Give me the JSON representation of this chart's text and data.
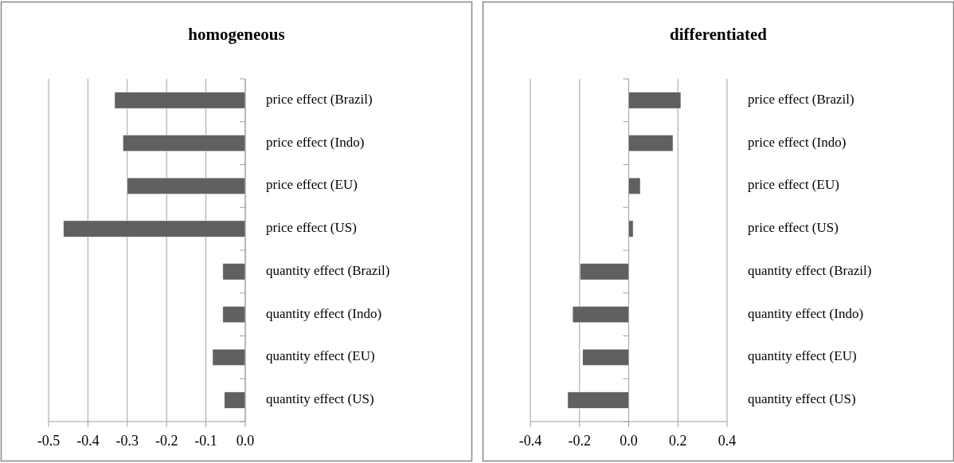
{
  "chart_data": [
    {
      "type": "bar",
      "orientation": "horizontal",
      "title": "homogeneous",
      "categories": [
        "price effect (Brazil)",
        "price effect (Indo)",
        "price effect (EU)",
        "price effect (US)",
        "quantity effect (Brazil)",
        "quantity effect (Indo)",
        "quantity effect (EU)",
        "quantity effect (US)"
      ],
      "values": [
        -0.332,
        -0.311,
        -0.3,
        -0.462,
        -0.057,
        -0.057,
        -0.083,
        -0.053
      ],
      "color": "#606060",
      "xlim": [
        -0.5,
        0
      ],
      "xticks": [
        {
          "value": -0.5,
          "label": "-0.5"
        },
        {
          "value": -0.4,
          "label": "-0.4"
        },
        {
          "value": -0.3,
          "label": "-0.3"
        },
        {
          "value": -0.2,
          "label": "-0.2"
        },
        {
          "value": -0.1,
          "label": "-0.1"
        },
        {
          "value": 0,
          "label": "0.0"
        }
      ],
      "grid": "x"
    },
    {
      "type": "bar",
      "orientation": "horizontal",
      "title": "differentiated",
      "categories": [
        "price effect (Brazil)",
        "price effect (Indo)",
        "price effect (EU)",
        "price effect (US)",
        "quantity effect (Brazil)",
        "quantity effect (Indo)",
        "quantity effect (EU)",
        "quantity effect (US)"
      ],
      "values": [
        0.212,
        0.18,
        0.047,
        0.018,
        -0.198,
        -0.228,
        -0.187,
        -0.248
      ],
      "color": "#606060",
      "xlim": [
        -0.4,
        0.4
      ],
      "xticks": [
        {
          "value": -0.4,
          "label": "-0.4"
        },
        {
          "value": -0.2,
          "label": "-0.2"
        },
        {
          "value": 0,
          "label": "0.0"
        },
        {
          "value": 0.2,
          "label": "0.2"
        },
        {
          "value": 0.4,
          "label": "0.4"
        }
      ],
      "grid": "x"
    }
  ]
}
